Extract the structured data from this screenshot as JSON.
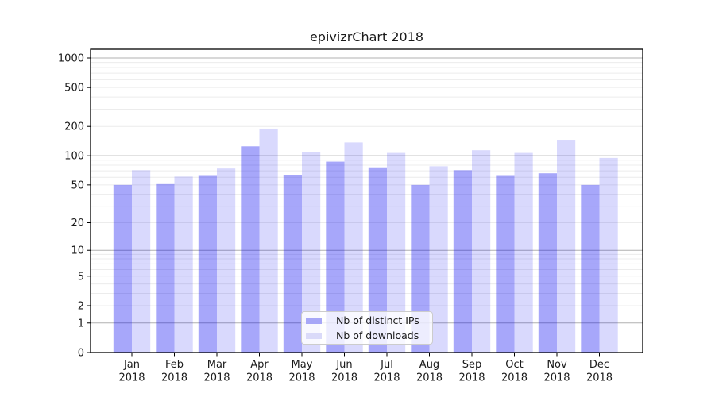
{
  "chart_data": {
    "type": "bar",
    "title": "epivizrChart 2018",
    "categories": [
      "Jan",
      "Feb",
      "Mar",
      "Apr",
      "May",
      "Jun",
      "Jul",
      "Aug",
      "Sep",
      "Oct",
      "Nov",
      "Dec"
    ],
    "year": "2018",
    "series": [
      {
        "name": "Nb of distinct IPs",
        "values": [
          50,
          51,
          62,
          125,
          63,
          87,
          76,
          50,
          71,
          62,
          66,
          50
        ]
      },
      {
        "name": "Nb of downloads",
        "values": [
          71,
          61,
          74,
          190,
          110,
          137,
          107,
          78,
          114,
          107,
          146,
          95
        ]
      }
    ],
    "yscale": "symlog",
    "y_ticks": [
      0,
      1,
      2,
      5,
      10,
      20,
      50,
      100,
      200,
      500,
      1000
    ],
    "ylim": [
      0,
      1228
    ],
    "xlabel": "",
    "ylabel": "",
    "grid": true,
    "legend_position": "lower center"
  },
  "colors": {
    "bar_base": "#0202f0",
    "ips_opacity": 0.35,
    "downloads_opacity": 0.15,
    "ips_swatch": "#a7a7f7",
    "downloads_swatch": "#dadaf9",
    "grid_major": "#b0b0b0",
    "grid_minor": "#ececec",
    "axis": "#000000",
    "text": "#1a1a1a",
    "legend_border": "#cccccc"
  }
}
